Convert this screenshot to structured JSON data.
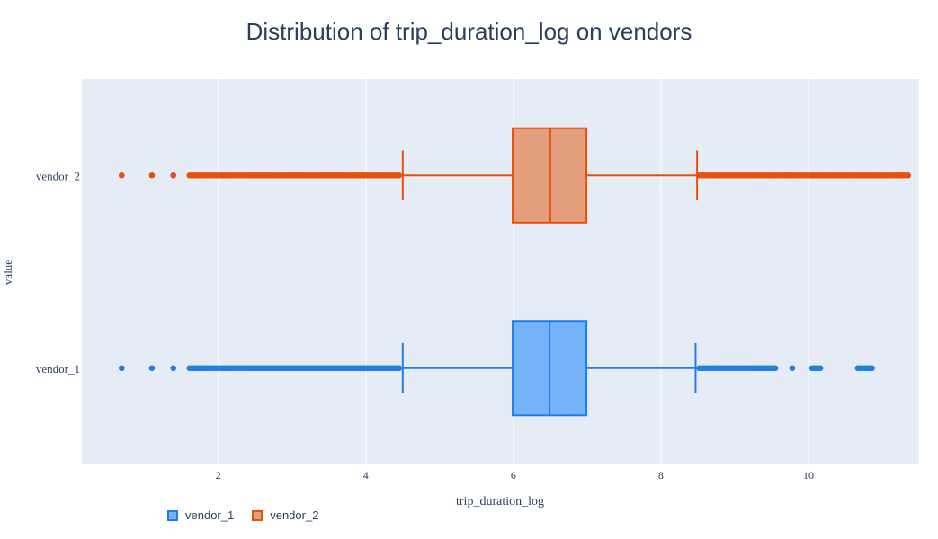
{
  "chart_data": {
    "type": "box",
    "orientation": "horizontal",
    "title": "Distribution of trip_duration_log on vendors",
    "xlabel": "trip_duration_log",
    "ylabel": "value",
    "xlim": [
      0.15,
      11.5
    ],
    "xticks": [
      2,
      4,
      6,
      8,
      10
    ],
    "categories": [
      "vendor_2",
      "vendor_1"
    ],
    "grid": true,
    "legend_position": "bottom-left",
    "series": [
      {
        "name": "vendor_1",
        "category": "vendor_1",
        "color": "#1f7fe8",
        "fill": "#74b3f8",
        "lower_fence": 4.5,
        "q1": 5.99,
        "median": 6.49,
        "q3": 6.99,
        "upper_fence": 8.47,
        "outliers": [
          0.69,
          1.1,
          1.39,
          1.61,
          1.79,
          1.95,
          2.08,
          2.2,
          2.3,
          2.4,
          2.48,
          2.56,
          2.64,
          2.75,
          2.9,
          3.1,
          3.3,
          3.5,
          3.7,
          3.9,
          4.1,
          4.3,
          4.45,
          8.52,
          8.6,
          8.7,
          8.8,
          8.9,
          9.0,
          9.1,
          9.2,
          9.3,
          9.35,
          9.42,
          9.5,
          9.55,
          9.78,
          10.05,
          10.16,
          10.67,
          10.86
        ]
      },
      {
        "name": "vendor_2",
        "category": "vendor_2",
        "color": "#e8500e",
        "fill": "#e39e7b",
        "lower_fence": 4.5,
        "q1": 5.99,
        "median": 6.5,
        "q3": 6.99,
        "upper_fence": 8.49,
        "outliers": [
          0.69,
          1.1,
          1.39,
          1.61,
          1.79,
          1.95,
          2.08,
          2.2,
          2.3,
          2.4,
          2.48,
          2.56,
          2.64,
          2.75,
          2.9,
          3.1,
          3.3,
          3.5,
          3.7,
          3.9,
          4.1,
          4.3,
          4.45,
          8.52,
          8.6,
          8.7,
          8.8,
          8.9,
          9.0,
          9.1,
          9.2,
          9.3,
          9.4,
          9.5,
          9.58,
          9.65,
          9.85,
          9.95,
          10.05,
          10.2,
          10.35,
          10.5,
          10.65,
          10.8,
          10.95,
          11.1,
          11.2,
          11.28,
          11.35
        ]
      }
    ]
  }
}
